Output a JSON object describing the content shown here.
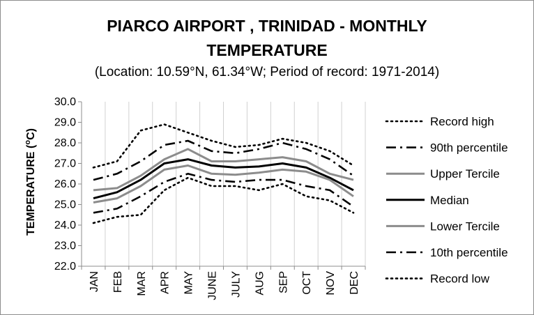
{
  "chart_data": {
    "type": "line",
    "title_line1": "PIARCO AIRPORT , TRINIDAD - MONTHLY",
    "title_line2": "TEMPERATURE",
    "subtitle": "(Location: 10.59°N, 61.34°W; Period of record: 1971-2014)",
    "ylabel_main": "TEMPERATURE (",
    "ylabel_sup": "o",
    "ylabel_end": "C)",
    "xlabel": "",
    "ylim": [
      22.0,
      30.0
    ],
    "yticks": [
      "22.0",
      "23.0",
      "24.0",
      "25.0",
      "26.0",
      "27.0",
      "28.0",
      "29.0",
      "30.0"
    ],
    "grid": "vertical",
    "legend_position": "right",
    "categories": [
      "JAN",
      "FEB",
      "MAR",
      "APR",
      "MAY",
      "JUNE",
      "JULY",
      "AUG",
      "SEP",
      "OCT",
      "NOV",
      "DEC"
    ],
    "series": [
      {
        "name": "Record high",
        "color": "#000000",
        "style": "dotted",
        "values": [
          26.8,
          27.1,
          28.6,
          28.9,
          28.5,
          28.1,
          27.8,
          27.9,
          28.2,
          28.0,
          27.6,
          26.9
        ]
      },
      {
        "name": "90th percentile",
        "color": "#000000",
        "style": "dashdot",
        "values": [
          26.2,
          26.5,
          27.1,
          27.9,
          28.1,
          27.6,
          27.5,
          27.7,
          28.0,
          27.7,
          27.2,
          26.4
        ]
      },
      {
        "name": "Upper Tercile",
        "color": "#8c8c8c",
        "style": "solid",
        "values": [
          25.7,
          25.8,
          26.4,
          27.2,
          27.7,
          27.1,
          27.1,
          27.2,
          27.3,
          27.1,
          26.5,
          26.2
        ]
      },
      {
        "name": "Median",
        "color": "#000000",
        "style": "solid",
        "values": [
          25.3,
          25.6,
          26.2,
          27.0,
          27.2,
          26.9,
          26.8,
          26.85,
          27.0,
          26.8,
          26.3,
          25.7
        ]
      },
      {
        "name": "Lower Tercile",
        "color": "#8c8c8c",
        "style": "solid",
        "values": [
          25.1,
          25.3,
          25.9,
          26.7,
          26.9,
          26.5,
          26.45,
          26.55,
          26.7,
          26.6,
          26.2,
          25.4
        ]
      },
      {
        "name": "10th percentile",
        "color": "#000000",
        "style": "dashdot",
        "values": [
          24.6,
          24.8,
          25.4,
          26.1,
          26.5,
          26.2,
          26.1,
          26.2,
          26.2,
          25.9,
          25.7,
          24.9
        ]
      },
      {
        "name": "Record low",
        "color": "#000000",
        "style": "dotted",
        "values": [
          24.1,
          24.4,
          24.5,
          25.7,
          26.3,
          25.9,
          25.9,
          25.7,
          26.0,
          25.4,
          25.2,
          24.6
        ]
      }
    ]
  }
}
